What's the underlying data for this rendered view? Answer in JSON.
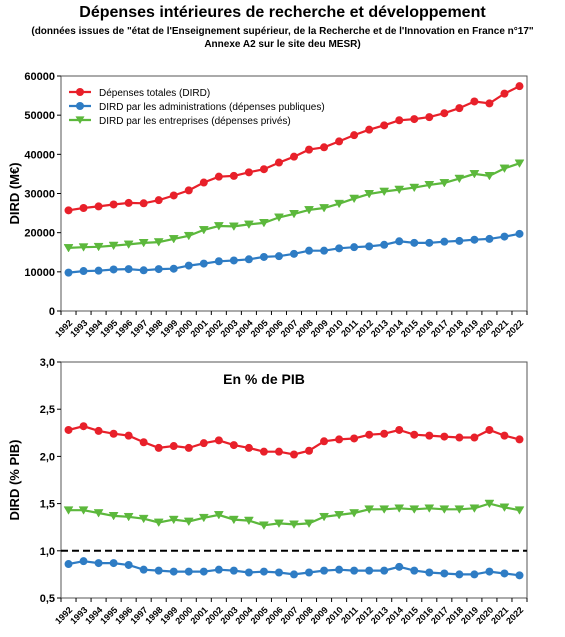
{
  "title": "Dépenses intérieures de recherche et développement",
  "subtitle_line1": "(données issues de \"état de l'Enseignement supérieur, de la Recherche et de l'Innovation en France n°17\"",
  "subtitle_line2": "Annexe A2 sur le site deu MESR)",
  "colors": {
    "total": "#e8202a",
    "public": "#2e7cc4",
    "private": "#5cb83c"
  },
  "chart_data": [
    {
      "type": "line",
      "title": "",
      "xlabel": "",
      "ylabel": "DIRD (M€)",
      "ylim": [
        0,
        60000
      ],
      "yticks": [
        0,
        10000,
        20000,
        30000,
        40000,
        50000,
        60000
      ],
      "ytick_labels": [
        "0",
        "10000",
        "20000",
        "30000",
        "40000",
        "50000",
        "60000"
      ],
      "grid": false,
      "legend_position": "top-left",
      "x": [
        "1992",
        "1993",
        "1994",
        "1995",
        "1996",
        "1997",
        "1998",
        "1999",
        "2000",
        "2001",
        "2002",
        "2003",
        "2004",
        "2005",
        "2006",
        "2007",
        "2008",
        "2009",
        "2010",
        "2011",
        "2012",
        "2013",
        "2014",
        "2015",
        "2016",
        "2017",
        "2018",
        "2019",
        "2020",
        "2021",
        "2022"
      ],
      "series": [
        {
          "name": "Dépenses totales (DIRD)",
          "color": "#e8202a",
          "marker": "circle",
          "values": [
            25700,
            26300,
            26700,
            27200,
            27600,
            27500,
            28300,
            29500,
            30800,
            32800,
            34300,
            34500,
            35400,
            36200,
            37900,
            39400,
            41200,
            41800,
            43300,
            44900,
            46300,
            47400,
            48700,
            49000,
            49500,
            50500,
            51800,
            53500,
            53000,
            55500,
            57400
          ]
        },
        {
          "name": "DIRD par les  administrations (dépenses publiques)",
          "color": "#2e7cc4",
          "marker": "circle",
          "values": [
            9800,
            10200,
            10300,
            10600,
            10700,
            10400,
            10700,
            10800,
            11600,
            12100,
            12700,
            12900,
            13200,
            13800,
            14000,
            14600,
            15400,
            15400,
            16000,
            16300,
            16500,
            16900,
            17800,
            17400,
            17400,
            17700,
            17900,
            18200,
            18400,
            19000,
            19700
          ]
        },
        {
          "name": "DIRD par les entreprises (dépenses privés)",
          "color": "#5cb83c",
          "marker": "triangle-down",
          "values": [
            16100,
            16300,
            16400,
            16700,
            17000,
            17400,
            17600,
            18400,
            19200,
            20700,
            21700,
            21600,
            22100,
            22500,
            23900,
            24800,
            25800,
            26300,
            27400,
            28700,
            29900,
            30500,
            31000,
            31500,
            32200,
            32700,
            33800,
            35000,
            34500,
            36400,
            37700
          ]
        }
      ]
    },
    {
      "type": "line",
      "title": "En % de PIB",
      "xlabel": "",
      "ylabel": "DIRD (% PIB)",
      "ylim": [
        0.5,
        3.0
      ],
      "yticks": [
        0.5,
        1.0,
        1.5,
        2.0,
        2.5,
        3.0
      ],
      "ytick_labels": [
        "0,5",
        "1,0",
        "1,5",
        "2,0",
        "2,5",
        "3,0"
      ],
      "reference_line": {
        "y": 1.0,
        "style": "dashed"
      },
      "grid": false,
      "x": [
        "1992",
        "1993",
        "1994",
        "1995",
        "1996",
        "1997",
        "1998",
        "1999",
        "2000",
        "2001",
        "2002",
        "2003",
        "2004",
        "2005",
        "2006",
        "2007",
        "2008",
        "2009",
        "2010",
        "2011",
        "2012",
        "2013",
        "2014",
        "2015",
        "2016",
        "2017",
        "2018",
        "2019",
        "2020",
        "2021",
        "2022"
      ],
      "series": [
        {
          "color": "#e8202a",
          "marker": "circle",
          "values": [
            2.28,
            2.32,
            2.27,
            2.24,
            2.22,
            2.15,
            2.09,
            2.11,
            2.09,
            2.14,
            2.17,
            2.12,
            2.09,
            2.05,
            2.05,
            2.02,
            2.06,
            2.16,
            2.18,
            2.19,
            2.23,
            2.24,
            2.28,
            2.23,
            2.22,
            2.21,
            2.2,
            2.2,
            2.28,
            2.22,
            2.18
          ]
        },
        {
          "color": "#2e7cc4",
          "marker": "circle",
          "values": [
            0.86,
            0.89,
            0.87,
            0.87,
            0.85,
            0.8,
            0.79,
            0.78,
            0.78,
            0.78,
            0.8,
            0.79,
            0.77,
            0.78,
            0.77,
            0.75,
            0.77,
            0.79,
            0.8,
            0.79,
            0.79,
            0.79,
            0.83,
            0.79,
            0.77,
            0.76,
            0.75,
            0.75,
            0.78,
            0.76,
            0.74
          ]
        },
        {
          "color": "#5cb83c",
          "marker": "triangle-down",
          "values": [
            1.43,
            1.43,
            1.4,
            1.37,
            1.36,
            1.34,
            1.3,
            1.33,
            1.31,
            1.35,
            1.38,
            1.33,
            1.32,
            1.27,
            1.29,
            1.28,
            1.29,
            1.36,
            1.38,
            1.4,
            1.44,
            1.44,
            1.45,
            1.44,
            1.45,
            1.44,
            1.44,
            1.45,
            1.5,
            1.46,
            1.43
          ]
        }
      ]
    }
  ]
}
